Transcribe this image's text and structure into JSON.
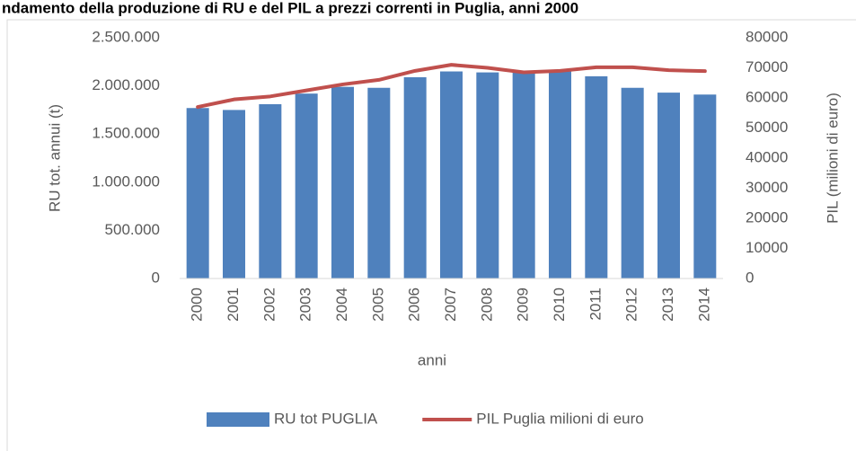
{
  "chart_data": {
    "type": "bar_line",
    "title": "ndamento della produzione di RU e del PIL a prezzi correnti in Puglia, anni 2000",
    "categories": [
      "2000",
      "2001",
      "2002",
      "2003",
      "2004",
      "2005",
      "2006",
      "2007",
      "2008",
      "2009",
      "2010",
      "2011",
      "2012",
      "2013",
      "2014"
    ],
    "series": [
      {
        "name": "RU tot PUGLIA",
        "type": "bar",
        "color": "#4f81bd",
        "values": [
          1770000,
          1750000,
          1810000,
          1920000,
          1990000,
          1980000,
          2090000,
          2150000,
          2140000,
          2150000,
          2150000,
          2100000,
          1980000,
          1930000,
          1910000
        ]
      },
      {
        "name": "PIL Puglia milioni di euro",
        "type": "line",
        "axis": "y2",
        "color": "#c0504d",
        "values": [
          57000,
          59500,
          60500,
          62500,
          64500,
          66000,
          69000,
          71000,
          70000,
          68500,
          69000,
          70200,
          70200,
          69200,
          68900
        ]
      }
    ],
    "xlabel": "anni",
    "ylabel": "RU tot. annui (t)",
    "y2label": "PIL (milioni di euro)",
    "ylim": [
      0,
      2500000
    ],
    "yticks": [
      0,
      {
        "value": 500000,
        "label": "500.000"
      },
      {
        "value": 1000000,
        "label": "1.000.000"
      },
      {
        "value": 1500000,
        "label": "1.500.000"
      },
      {
        "value": 2000000,
        "label": "2.000.000"
      },
      {
        "value": 2500000,
        "label": "2.500.000"
      }
    ],
    "y2lim": [
      0,
      80000
    ],
    "y2ticks": [
      0,
      10000,
      20000,
      30000,
      40000,
      50000,
      60000,
      70000,
      80000
    ],
    "legend": "bottom"
  }
}
